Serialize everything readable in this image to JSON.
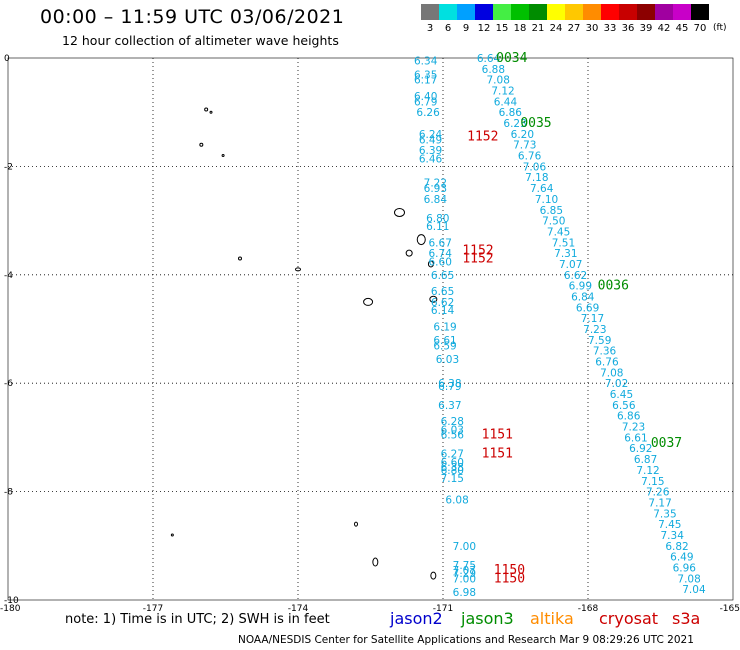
{
  "header": {
    "title": "00:00 – 11:59 UTC 03/06/2021",
    "subtitle": "12 hour collection of altimeter wave heights"
  },
  "legend_scale": {
    "unit": "(ft)",
    "bins": [
      {
        "label": "3",
        "color": "#777777"
      },
      {
        "label": "6",
        "color": "#00e0e0"
      },
      {
        "label": "9",
        "color": "#00a0ff"
      },
      {
        "label": "12",
        "color": "#0000e0"
      },
      {
        "label": "15",
        "color": "#44ee44"
      },
      {
        "label": "18",
        "color": "#00c000"
      },
      {
        "label": "21",
        "color": "#008c00"
      },
      {
        "label": "24",
        "color": "#ffff00"
      },
      {
        "label": "27",
        "color": "#ffc800"
      },
      {
        "label": "30",
        "color": "#ff8c00"
      },
      {
        "label": "33",
        "color": "#ff0000"
      },
      {
        "label": "36",
        "color": "#c80000"
      },
      {
        "label": "39",
        "color": "#8c0000"
      },
      {
        "label": "42",
        "color": "#a000a0"
      },
      {
        "label": "45",
        "color": "#c800c8"
      },
      {
        "label": "70",
        "color": "#000000"
      }
    ]
  },
  "axes": {
    "x_ticks": [
      "-180",
      "-177",
      "-174",
      "-171",
      "-168",
      "-165"
    ],
    "y_ticks": [
      "0",
      "-2",
      "-4",
      "-6",
      "-8",
      "-10"
    ]
  },
  "colors": {
    "jason2": "#0000cc",
    "jason3": "#008c00",
    "altika": "#ff8c00",
    "cryosat": "#cc0000",
    "s3a": "#cc0000",
    "swh": "#11aadd"
  },
  "tracks": {
    "jason3": [
      {
        "lon": -170.3,
        "lat": 0.0,
        "v": "6.64"
      },
      {
        "lon": -170.2,
        "lat": -0.2,
        "v": "6.88"
      },
      {
        "lon": -170.1,
        "lat": -0.4,
        "v": "7.08"
      },
      {
        "lon": -170.0,
        "lat": -0.6,
        "v": "7.12"
      },
      {
        "lon": -169.95,
        "lat": -0.8,
        "v": "6.44"
      },
      {
        "lon": -169.85,
        "lat": -1.0,
        "v": "6.86"
      },
      {
        "lon": -169.75,
        "lat": -1.2,
        "v": "6.23"
      },
      {
        "lon": -169.6,
        "lat": -1.4,
        "v": "6.20"
      },
      {
        "lon": -169.55,
        "lat": -1.6,
        "v": "7.73"
      },
      {
        "lon": -169.45,
        "lat": -1.8,
        "v": "6.76"
      },
      {
        "lon": -169.35,
        "lat": -2.0,
        "v": "7.06"
      },
      {
        "lon": -169.3,
        "lat": -2.2,
        "v": "7.18"
      },
      {
        "lon": -169.2,
        "lat": -2.4,
        "v": "7.64"
      },
      {
        "lon": -169.1,
        "lat": -2.6,
        "v": "7.10"
      },
      {
        "lon": -169.0,
        "lat": -2.8,
        "v": "6.85"
      },
      {
        "lon": -168.95,
        "lat": -3.0,
        "v": "7.50"
      },
      {
        "lon": -168.85,
        "lat": -3.2,
        "v": "7.45"
      },
      {
        "lon": -168.75,
        "lat": -3.4,
        "v": "7.51"
      },
      {
        "lon": -168.7,
        "lat": -3.6,
        "v": "7.31"
      },
      {
        "lon": -168.6,
        "lat": -3.8,
        "v": "7.07"
      },
      {
        "lon": -168.5,
        "lat": -4.0,
        "v": "6.62"
      },
      {
        "lon": -168.4,
        "lat": -4.2,
        "v": "6.99"
      },
      {
        "lon": -168.35,
        "lat": -4.4,
        "v": "6.84"
      },
      {
        "lon": -168.25,
        "lat": -4.6,
        "v": "6.69"
      },
      {
        "lon": -168.15,
        "lat": -4.8,
        "v": "7.17"
      },
      {
        "lon": -168.1,
        "lat": -5.0,
        "v": "7.23"
      },
      {
        "lon": -168.0,
        "lat": -5.2,
        "v": "7.59"
      },
      {
        "lon": -167.9,
        "lat": -5.4,
        "v": "7.36"
      },
      {
        "lon": -167.85,
        "lat": -5.6,
        "v": "6.76"
      },
      {
        "lon": -167.75,
        "lat": -5.8,
        "v": "7.08"
      },
      {
        "lon": -167.65,
        "lat": -6.0,
        "v": "7.02"
      },
      {
        "lon": -167.55,
        "lat": -6.2,
        "v": "6.45"
      },
      {
        "lon": -167.5,
        "lat": -6.4,
        "v": "6.56"
      },
      {
        "lon": -167.4,
        "lat": -6.6,
        "v": "6.86"
      },
      {
        "lon": -167.3,
        "lat": -6.8,
        "v": "7.23"
      },
      {
        "lon": -167.25,
        "lat": -7.0,
        "v": "6.61"
      },
      {
        "lon": -167.15,
        "lat": -7.2,
        "v": "6.92"
      },
      {
        "lon": -167.05,
        "lat": -7.4,
        "v": "6.87"
      },
      {
        "lon": -167.0,
        "lat": -7.6,
        "v": "7.12"
      },
      {
        "lon": -166.9,
        "lat": -7.8,
        "v": "7.15"
      },
      {
        "lon": -166.8,
        "lat": -8.0,
        "v": "7.26"
      },
      {
        "lon": -166.75,
        "lat": -8.2,
        "v": "7.17"
      },
      {
        "lon": -166.65,
        "lat": -8.4,
        "v": "7.35"
      },
      {
        "lon": -166.55,
        "lat": -8.6,
        "v": "7.45"
      },
      {
        "lon": -166.5,
        "lat": -8.8,
        "v": "7.34"
      },
      {
        "lon": -166.4,
        "lat": -9.0,
        "v": "6.82"
      },
      {
        "lon": -166.3,
        "lat": -9.2,
        "v": "6.49"
      },
      {
        "lon": -166.25,
        "lat": -9.4,
        "v": "6.96"
      },
      {
        "lon": -166.15,
        "lat": -9.6,
        "v": "7.08"
      },
      {
        "lon": -166.05,
        "lat": -9.8,
        "v": "7.04"
      }
    ],
    "cryosat": [
      {
        "lon": -171.6,
        "lat": -0.05,
        "v": "6.34"
      },
      {
        "lon": -171.6,
        "lat": -0.3,
        "v": "6.35"
      },
      {
        "lon": -171.6,
        "lat": -0.4,
        "v": "6.17"
      },
      {
        "lon": -171.6,
        "lat": -0.7,
        "v": "6.40"
      },
      {
        "lon": -171.6,
        "lat": -0.8,
        "v": "6.79"
      },
      {
        "lon": -171.55,
        "lat": -1.0,
        "v": "6.26"
      },
      {
        "lon": -171.5,
        "lat": -1.4,
        "v": "6.24"
      },
      {
        "lon": -171.5,
        "lat": -1.5,
        "v": "6.49"
      },
      {
        "lon": -171.5,
        "lat": -1.7,
        "v": "6.39"
      },
      {
        "lon": -171.5,
        "lat": -1.85,
        "v": "6.46"
      },
      {
        "lon": -171.4,
        "lat": -2.3,
        "v": "7.22"
      },
      {
        "lon": -171.4,
        "lat": -2.4,
        "v": "6.93"
      },
      {
        "lon": -171.4,
        "lat": -2.6,
        "v": "6.84"
      },
      {
        "lon": -171.35,
        "lat": -2.95,
        "v": "6.80"
      },
      {
        "lon": -171.35,
        "lat": -3.1,
        "v": "6.11"
      },
      {
        "lon": -171.3,
        "lat": -3.4,
        "v": "6.67"
      },
      {
        "lon": -171.3,
        "lat": -3.6,
        "v": "6.74"
      },
      {
        "lon": -171.3,
        "lat": -3.75,
        "v": "6.60"
      },
      {
        "lon": -171.25,
        "lat": -4.0,
        "v": "6.65"
      },
      {
        "lon": -171.25,
        "lat": -4.3,
        "v": "6.65"
      },
      {
        "lon": -171.25,
        "lat": -4.5,
        "v": "6.62"
      },
      {
        "lon": -171.25,
        "lat": -4.65,
        "v": "6.14"
      },
      {
        "lon": -171.2,
        "lat": -4.95,
        "v": "6.19"
      },
      {
        "lon": -171.2,
        "lat": -5.2,
        "v": "6.61"
      },
      {
        "lon": -171.2,
        "lat": -5.3,
        "v": "6.59"
      },
      {
        "lon": -171.15,
        "lat": -5.55,
        "v": "6.03"
      },
      {
        "lon": -171.1,
        "lat": -6.0,
        "v": "6.38"
      },
      {
        "lon": -171.1,
        "lat": -6.05,
        "v": "6.79"
      },
      {
        "lon": -171.1,
        "lat": -6.4,
        "v": "6.37"
      },
      {
        "lon": -171.05,
        "lat": -6.7,
        "v": "6.28"
      },
      {
        "lon": -171.05,
        "lat": -6.85,
        "v": "6.03"
      },
      {
        "lon": -171.05,
        "lat": -6.95,
        "v": "6.56"
      },
      {
        "lon": -171.05,
        "lat": -7.3,
        "v": "6.27"
      },
      {
        "lon": -171.05,
        "lat": -7.45,
        "v": "6.60"
      },
      {
        "lon": -171.05,
        "lat": -7.55,
        "v": "6.38"
      },
      {
        "lon": -171.05,
        "lat": -7.6,
        "v": "6.80"
      },
      {
        "lon": -171.05,
        "lat": -7.75,
        "v": "7.15"
      },
      {
        "lon": -170.95,
        "lat": -8.15,
        "v": "6.08"
      },
      {
        "lon": -170.8,
        "lat": -9.0,
        "v": "7.00"
      },
      {
        "lon": -170.8,
        "lat": -9.35,
        "v": "7.75"
      },
      {
        "lon": -170.8,
        "lat": -9.45,
        "v": "7.07"
      },
      {
        "lon": -170.8,
        "lat": -9.5,
        "v": "7.29"
      },
      {
        "lon": -170.8,
        "lat": -9.6,
        "v": "7.00"
      },
      {
        "lon": -170.8,
        "lat": -9.85,
        "v": "6.98"
      }
    ]
  },
  "time_tags": [
    {
      "lon": -169.9,
      "lat": 0.0,
      "text": "0034",
      "mission": "jason3"
    },
    {
      "lon": -169.4,
      "lat": -1.2,
      "text": "0035",
      "mission": "jason3"
    },
    {
      "lon": -167.8,
      "lat": -4.2,
      "text": "0036",
      "mission": "jason3"
    },
    {
      "lon": -166.7,
      "lat": -7.1,
      "text": "0037",
      "mission": "jason3"
    },
    {
      "lon": -170.5,
      "lat": -1.45,
      "text": "1152",
      "mission": "cryosat"
    },
    {
      "lon": -170.6,
      "lat": -3.55,
      "text": "1152",
      "mission": "cryosat"
    },
    {
      "lon": -170.6,
      "lat": -3.7,
      "text": "1152",
      "mission": "cryosat"
    },
    {
      "lon": -170.2,
      "lat": -6.95,
      "text": "1151",
      "mission": "cryosat"
    },
    {
      "lon": -170.2,
      "lat": -7.3,
      "text": "1151",
      "mission": "cryosat"
    },
    {
      "lon": -169.95,
      "lat": -9.45,
      "text": "1150",
      "mission": "cryosat"
    },
    {
      "lon": -169.95,
      "lat": -9.6,
      "text": "1150",
      "mission": "cryosat"
    }
  ],
  "islands": [
    {
      "lon": -175.9,
      "lat": -0.95,
      "w": 3,
      "h": 3
    },
    {
      "lon": -175.8,
      "lat": -1.0,
      "w": 2,
      "h": 2
    },
    {
      "lon": -176.0,
      "lat": -1.6,
      "w": 3,
      "h": 3
    },
    {
      "lon": -175.55,
      "lat": -1.8,
      "w": 2,
      "h": 2
    },
    {
      "lon": -175.2,
      "lat": -3.7,
      "w": 3,
      "h": 3
    },
    {
      "lon": -174.0,
      "lat": -3.9,
      "w": 5,
      "h": 3
    },
    {
      "lon": -172.55,
      "lat": -4.5,
      "w": 9,
      "h": 7
    },
    {
      "lon": -171.2,
      "lat": -4.45,
      "w": 7,
      "h": 6
    },
    {
      "lon": -171.9,
      "lat": -2.85,
      "w": 10,
      "h": 8
    },
    {
      "lon": -171.7,
      "lat": -3.6,
      "w": 6,
      "h": 6
    },
    {
      "lon": -171.45,
      "lat": -3.35,
      "w": 8,
      "h": 10
    },
    {
      "lon": -171.25,
      "lat": -3.8,
      "w": 5,
      "h": 6
    },
    {
      "lon": -172.8,
      "lat": -8.6,
      "w": 3,
      "h": 4
    },
    {
      "lon": -172.4,
      "lat": -9.3,
      "w": 5,
      "h": 8
    },
    {
      "lon": -171.2,
      "lat": -9.55,
      "w": 5,
      "h": 7
    },
    {
      "lon": -176.6,
      "lat": -8.8,
      "w": 2,
      "h": 2
    }
  ],
  "footer": {
    "note": "note:  1) Time is in UTC;  2) SWH is in feet",
    "missions": [
      "jason2",
      "jason3",
      "altika",
      "cryosat",
      "s3a"
    ],
    "credit": "NOAA/NESDIS Center for Satellite Applications and Research    Mar  9 08:29:26 UTC 2021"
  }
}
